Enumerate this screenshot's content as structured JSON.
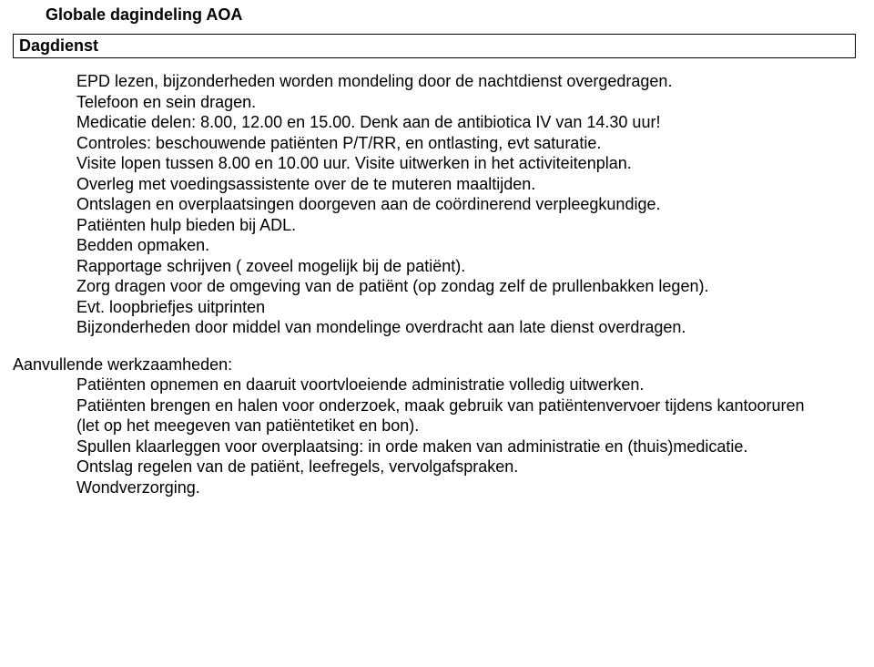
{
  "title": "Globale dagindeling AOA",
  "section_label": "Dagdienst",
  "block1_lines": [
    "EPD lezen, bijzonderheden worden mondeling door de nachtdienst overgedragen.",
    "Telefoon en sein dragen.",
    "Medicatie delen: 8.00, 12.00 en 15.00. Denk aan de antibiotica IV van 14.30 uur!",
    "Controles: beschouwende patiënten P/T/RR, en ontlasting, evt saturatie.",
    "Visite lopen tussen 8.00 en 10.00 uur. Visite uitwerken in het activiteitenplan.",
    "Overleg met voedingsassistente over de te muteren maaltijden.",
    "Ontslagen en overplaatsingen doorgeven aan de coördinerend verpleegkundige.",
    "Patiënten hulp bieden bij ADL.",
    "Bedden opmaken.",
    "Rapportage schrijven ( zoveel mogelijk bij de patiënt).",
    "Zorg dragen voor de omgeving van de patiënt (op zondag zelf de prullenbakken legen).",
    "Evt. loopbriefjes uitprinten",
    "Bijzonderheden door middel van mondelinge overdracht aan late dienst overdragen."
  ],
  "sub_heading": "Aanvullende werkzaamheden:",
  "block2_lines": [
    "Patiënten opnemen en daaruit voortvloeiende administratie volledig uitwerken.",
    "Patiënten brengen en halen voor onderzoek, maak gebruik van patiëntenvervoer tijdens kantooruren (let op het meegeven van patiëntetiket en bon).",
    "Spullen klaarleggen voor overplaatsing: in orde maken van administratie en (thuis)medicatie.",
    "Ontslag regelen van de patiënt, leefregels, vervolgafspraken.",
    "Wondverzorging."
  ]
}
